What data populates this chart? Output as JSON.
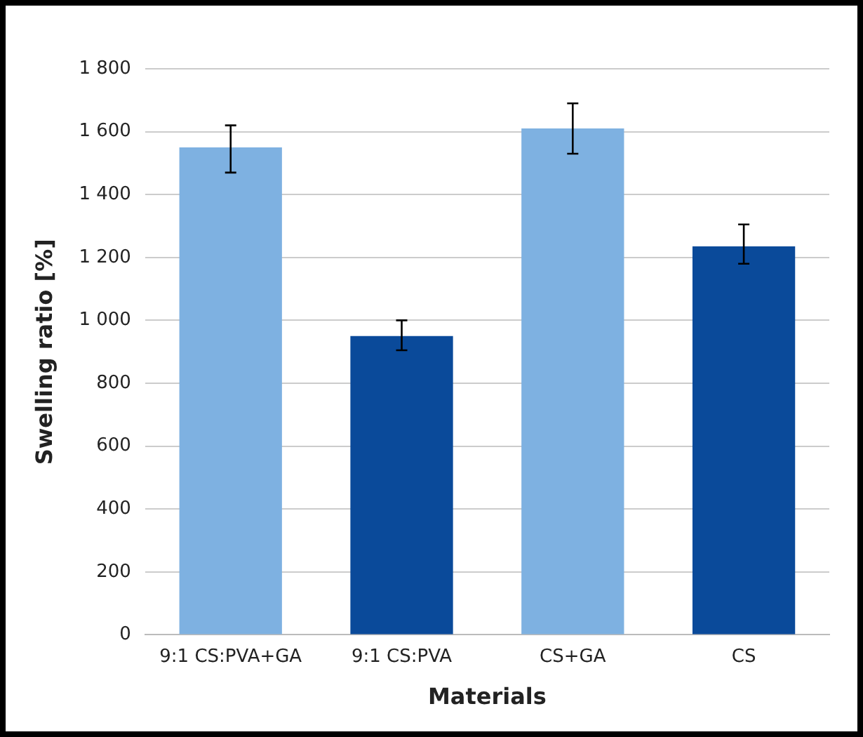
{
  "chart_data": {
    "type": "bar",
    "xlabel": "Materials",
    "ylabel": "Swelling ratio [%]",
    "categories": [
      "9:1 CS:PVA+GA",
      "9:1 CS:PVA",
      "CS+GA",
      "CS"
    ],
    "values": [
      1550,
      950,
      1610,
      1235
    ],
    "colors": [
      "#7eb1e1",
      "#0a4a9a",
      "#7eb1e1",
      "#0a4a9a"
    ],
    "errors": [
      [
        1470,
        1620
      ],
      [
        905,
        1000
      ],
      [
        1530,
        1690
      ],
      [
        1180,
        1305
      ]
    ],
    "ylim": [
      0,
      1800
    ],
    "yticks": [
      0,
      200,
      400,
      600,
      800,
      {
        "value": 1000,
        "label": "1 000"
      },
      {
        "value": 1200,
        "label": "1 200"
      },
      {
        "value": 1400,
        "label": "1 400"
      },
      {
        "value": 1600,
        "label": "1 600"
      },
      {
        "value": 1800,
        "label": "1 800"
      }
    ],
    "grid": "y",
    "legend": false
  }
}
